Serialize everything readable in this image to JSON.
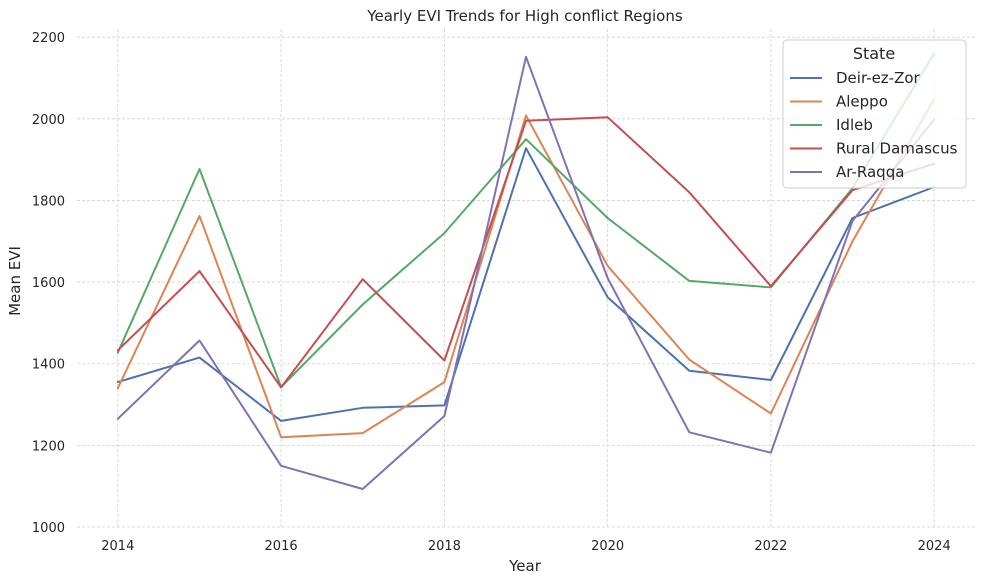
{
  "chart_data": {
    "type": "line",
    "title": "Yearly EVI Trends for High conflict Regions",
    "xlabel": "Year",
    "ylabel": "Mean EVI",
    "x": [
      2014,
      2015,
      2016,
      2017,
      2018,
      2019,
      2020,
      2021,
      2022,
      2023,
      2024
    ],
    "xlim": [
      2013.5,
      2024.5
    ],
    "ylim": [
      1000,
      2220
    ],
    "xticks": [
      2014,
      2016,
      2018,
      2020,
      2022,
      2024
    ],
    "yticks": [
      1000,
      1200,
      1400,
      1600,
      1800,
      2000,
      2200
    ],
    "grid": true,
    "legend": {
      "title": "State",
      "placement": "top-right"
    },
    "series": [
      {
        "name": "Deir-ez-Zor",
        "color": "#4c72b0",
        "values": [
          1355,
          1415,
          1260,
          1292,
          1298,
          1928,
          1563,
          1383,
          1360,
          1757,
          1833
        ]
      },
      {
        "name": "Aleppo",
        "color": "#dd8452",
        "values": [
          1340,
          1762,
          1220,
          1230,
          1355,
          2008,
          1640,
          1410,
          1278,
          1700,
          2048
        ]
      },
      {
        "name": "Idleb",
        "color": "#55a868",
        "values": [
          1427,
          1877,
          1343,
          1545,
          1720,
          1950,
          1757,
          1603,
          1587,
          1830,
          2160
        ]
      },
      {
        "name": "Rural Damascus",
        "color": "#c44e52",
        "values": [
          1433,
          1627,
          1342,
          1607,
          1408,
          1995,
          2004,
          1820,
          1590,
          1825,
          1890
        ]
      },
      {
        "name": "Ar-Raqqa",
        "color": "#8172b3",
        "values": [
          1265,
          1457,
          1150,
          1093,
          1272,
          2152,
          1610,
          1232,
          1182,
          1750,
          1998
        ]
      }
    ]
  }
}
